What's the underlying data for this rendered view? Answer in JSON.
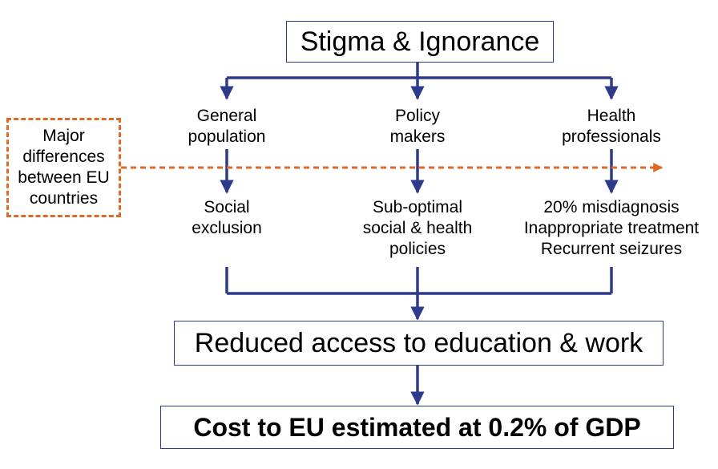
{
  "top": {
    "title": "Stigma & Ignorance"
  },
  "groups": [
    {
      "label": [
        "General",
        "population"
      ],
      "effect": [
        "Social",
        "exclusion"
      ]
    },
    {
      "label": [
        "Policy",
        "makers"
      ],
      "effect": [
        "Sub-optimal",
        "social & health",
        "policies"
      ]
    },
    {
      "label": [
        "Health",
        "professionals"
      ],
      "effect": [
        "20% misdiagnosis",
        "Inappropriate treatment",
        "Recurrent seizures"
      ]
    }
  ],
  "side_note": [
    "Major",
    "differences",
    "between EU",
    "countries"
  ],
  "middle": {
    "title": "Reduced access to education & work"
  },
  "bottom": {
    "title": "Cost to EU estimated at 0.2% of GDP"
  },
  "colors": {
    "arrow": "#2e3a8c",
    "dashed": "#e06a25",
    "box_border": "#2e3a8c"
  }
}
